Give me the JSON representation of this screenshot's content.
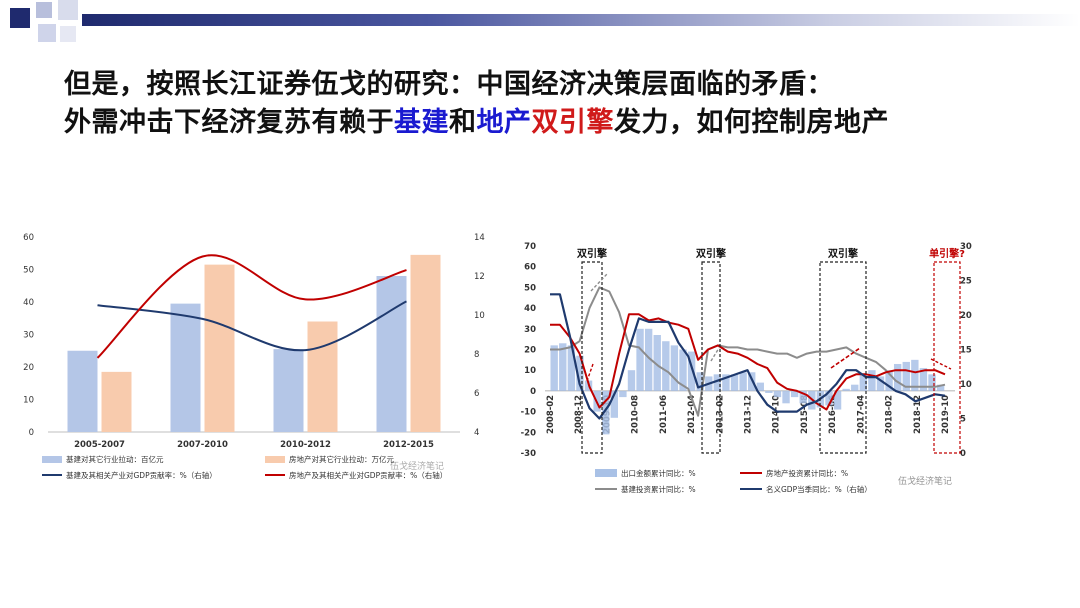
{
  "slide": {
    "title_line1": "但是，按照长江证券伍戈的研究：中国经济决策层面临的矛盾：",
    "title_line2_prefix": "外需冲击下经济复苏有赖于",
    "title_line2_jijian": "基建",
    "title_line2_he": "和",
    "title_line2_dichan": "地产",
    "title_line2_engine": "双引擎",
    "title_line2_suffix": "发力，如何控制房地产"
  },
  "colors": {
    "bar_blue": "#b4c6e7",
    "bar_orange": "#f8cbad",
    "line_navy": "#1f3a6e",
    "line_red": "#c00000",
    "line_gray": "#8c8c8c",
    "bar_bg_blue": "#a9c1e6"
  },
  "chart_data": [
    {
      "type": "bar",
      "categories": [
        "2005-2007",
        "2007-2010",
        "2010-2012",
        "2012-2015"
      ],
      "ylim": [
        0,
        60
      ],
      "y_ticks": [
        "0",
        "10",
        "20",
        "30",
        "40",
        "50",
        "60"
      ],
      "y2lim": [
        4,
        14
      ],
      "y2_ticks": [
        "4",
        "6",
        "8",
        "10",
        "12",
        "14"
      ],
      "series": [
        {
          "name": "基建对其它行业拉动：百亿元",
          "kind": "bar",
          "axis": "left",
          "values": [
            25,
            39.5,
            25.5,
            48
          ]
        },
        {
          "name": "房地产对其它行业拉动：万亿元",
          "kind": "bar",
          "axis": "left",
          "values": [
            18.5,
            51.5,
            34,
            54.5
          ]
        },
        {
          "name": "基建及其相关产业对GDP贡献率：%（右轴）",
          "kind": "line",
          "axis": "right",
          "values": [
            10.5,
            9.8,
            8.2,
            10.7
          ]
        },
        {
          "name": "房地产及其相关产业对GDP贡献率：%（右轴）",
          "kind": "line",
          "axis": "right",
          "values": [
            7.8,
            13,
            10.8,
            12.3
          ]
        }
      ],
      "watermark": "伍戈经济笔记"
    },
    {
      "type": "line",
      "ylim": [
        -30,
        70
      ],
      "y_ticks": [
        "-30",
        "-20",
        "-10",
        "0",
        "10",
        "20",
        "30",
        "40",
        "50",
        "60",
        "70"
      ],
      "y2lim": [
        0,
        30
      ],
      "y2_ticks": [
        "0",
        "5",
        "10",
        "15",
        "20",
        "25",
        "30"
      ],
      "x_ticks": [
        "2008-02",
        "2008-12",
        "2009-10",
        "2010-08",
        "2011-06",
        "2012-04",
        "2013-02",
        "2013-12",
        "2014-10",
        "2015-08",
        "2016-06",
        "2017-04",
        "2018-02",
        "2018-12",
        "2019-10"
      ],
      "annotations": [
        "双引擎",
        "双引擎",
        "双引擎",
        "单引擎?"
      ],
      "series": [
        {
          "name": "出口金额累计同比：%",
          "kind": "bar",
          "axis": "left",
          "values": [
            22,
            23,
            22,
            17,
            5,
            -10,
            -21,
            -13,
            -3,
            10,
            30,
            30,
            27,
            24,
            22,
            20,
            19,
            9,
            7,
            8,
            8,
            8,
            9,
            9,
            4,
            -1,
            -3,
            -6,
            -3,
            -6,
            -9,
            -8,
            -7,
            -9,
            1,
            3,
            8,
            10,
            7,
            10,
            13,
            14,
            15,
            11,
            8,
            3
          ]
        },
        {
          "name": "房地产投资累计同比：%",
          "kind": "line",
          "axis": "left",
          "values": [
            32,
            32,
            26,
            18,
            2,
            -8,
            -3,
            18,
            37,
            37,
            34,
            35,
            33,
            32,
            30,
            15,
            20,
            22,
            19,
            18,
            16,
            13,
            11,
            4,
            1,
            0,
            -2,
            -6,
            -9,
            0,
            6,
            8,
            8,
            7,
            9,
            10,
            10,
            9,
            10,
            10,
            8
          ]
        },
        {
          "name": "基建投资累计同比：%",
          "kind": "line",
          "axis": "left",
          "values": [
            20,
            20,
            21,
            24,
            40,
            50,
            48,
            38,
            22,
            21,
            16,
            12,
            9,
            4,
            1,
            -12,
            20,
            22,
            21,
            21,
            20,
            20,
            19,
            18,
            18,
            16,
            18,
            19,
            19,
            20,
            21,
            18,
            16,
            14,
            10,
            5,
            2,
            2,
            2,
            2,
            3
          ]
        },
        {
          "name": "名义GDP当季同比：%（右轴）",
          "kind": "line",
          "axis": "right",
          "values": [
            23,
            23,
            17,
            10,
            6.5,
            5,
            7,
            10,
            15,
            19.5,
            19,
            19,
            19,
            16,
            14,
            9.5,
            10,
            10.5,
            11,
            11.5,
            12,
            9,
            7,
            6,
            6,
            6,
            7,
            7.5,
            8.5,
            10,
            12,
            12,
            11,
            11,
            10,
            9,
            8.5,
            7.5,
            8,
            8.5,
            8.3
          ]
        }
      ],
      "watermark": "伍戈经济笔记"
    }
  ]
}
